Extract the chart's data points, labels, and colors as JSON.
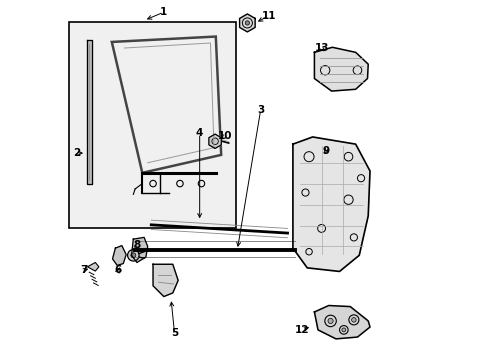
{
  "background_color": "#ffffff",
  "line_color": "#000000",
  "box_bg": "#f0f0f0",
  "figsize": [
    4.89,
    3.6
  ],
  "dpi": 100,
  "leaders": {
    "1": {
      "lpos": [
        0.275,
        0.968
      ],
      "lend": [
        0.22,
        0.945
      ]
    },
    "2": {
      "lpos": [
        0.032,
        0.575
      ],
      "lend": [
        0.058,
        0.575
      ]
    },
    "3": {
      "lpos": [
        0.545,
        0.695
      ],
      "lend": [
        0.48,
        0.305
      ]
    },
    "4": {
      "lpos": [
        0.375,
        0.63
      ],
      "lend": [
        0.375,
        0.385
      ]
    },
    "5": {
      "lpos": [
        0.305,
        0.072
      ],
      "lend": [
        0.295,
        0.17
      ]
    },
    "6": {
      "lpos": [
        0.148,
        0.248
      ],
      "lend": [
        0.155,
        0.262
      ]
    },
    "7": {
      "lpos": [
        0.052,
        0.248
      ],
      "lend": [
        0.072,
        0.255
      ]
    },
    "8": {
      "lpos": [
        0.2,
        0.318
      ],
      "lend": [
        0.192,
        0.295
      ]
    },
    "9": {
      "lpos": [
        0.728,
        0.582
      ],
      "lend": [
        0.715,
        0.568
      ]
    },
    "10": {
      "lpos": [
        0.445,
        0.622
      ],
      "lend": [
        0.428,
        0.608
      ]
    },
    "11": {
      "lpos": [
        0.568,
        0.958
      ],
      "lend": [
        0.53,
        0.938
      ]
    },
    "12": {
      "lpos": [
        0.66,
        0.082
      ],
      "lend": [
        0.688,
        0.092
      ]
    },
    "13": {
      "lpos": [
        0.715,
        0.868
      ],
      "lend": [
        0.728,
        0.852
      ]
    }
  }
}
